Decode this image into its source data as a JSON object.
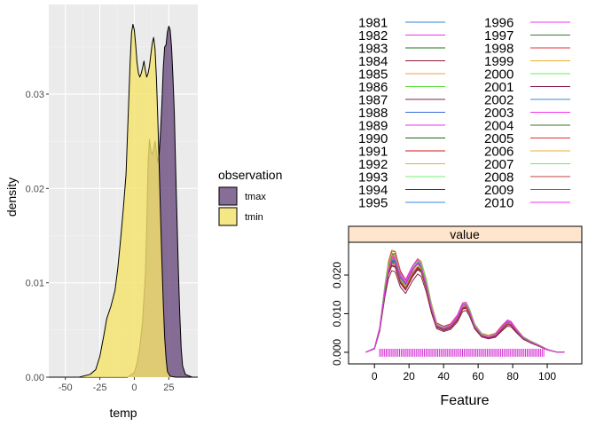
{
  "chart_data": [
    {
      "type": "area",
      "title": "",
      "xlabel": "temp",
      "ylabel": "density",
      "xlim": [
        -62,
        46
      ],
      "ylim": [
        0,
        0.0395
      ],
      "x_ticks": [
        -50,
        -25,
        0,
        25
      ],
      "x_tick_labels": [
        "-50",
        "-25",
        "0",
        "25"
      ],
      "y_ticks": [
        0.0,
        0.01,
        0.02,
        0.03
      ],
      "y_tick_labels": [
        "0.00",
        "0.01",
        "0.02",
        "0.03"
      ],
      "grid": true,
      "legend": {
        "title": "observation",
        "placement": "right"
      },
      "series": [
        {
          "name": "tmax",
          "fill": "#6a4c7e",
          "fill_opacity": 0.8,
          "points": [
            [
              -5,
              0
            ],
            [
              0,
              0.0005
            ],
            [
              2,
              0.0015
            ],
            [
              4,
              0.0032
            ],
            [
              6,
              0.006
            ],
            [
              8,
              0.0108
            ],
            [
              9,
              0.016
            ],
            [
              10,
              0.0228
            ],
            [
              11,
              0.0252
            ],
            [
              12,
              0.024
            ],
            [
              13,
              0.0236
            ],
            [
              14,
              0.0242
            ],
            [
              15,
              0.025
            ],
            [
              16,
              0.024
            ],
            [
              17,
              0.0228
            ],
            [
              18,
              0.0236
            ],
            [
              19,
              0.026
            ],
            [
              20,
              0.029
            ],
            [
              21,
              0.0328
            ],
            [
              22,
              0.035
            ],
            [
              23,
              0.0352
            ],
            [
              24,
              0.0366
            ],
            [
              25,
              0.0372
            ],
            [
              26,
              0.0368
            ],
            [
              27,
              0.035
            ],
            [
              28,
              0.0318
            ],
            [
              29,
              0.028
            ],
            [
              30,
              0.022
            ],
            [
              31,
              0.0165
            ],
            [
              32,
              0.011
            ],
            [
              33,
              0.0065
            ],
            [
              34,
              0.003
            ],
            [
              35,
              0.0012
            ],
            [
              37,
              0.0003
            ],
            [
              42,
              0
            ]
          ]
        },
        {
          "name": "tmin",
          "fill": "#f5e36a",
          "fill_opacity": 0.8,
          "points": [
            [
              -58,
              0
            ],
            [
              -40,
              0
            ],
            [
              -32,
              0.0003
            ],
            [
              -28,
              0.0008
            ],
            [
              -25,
              0.0022
            ],
            [
              -22,
              0.0045
            ],
            [
              -20,
              0.0062
            ],
            [
              -17,
              0.0075
            ],
            [
              -14,
              0.0092
            ],
            [
              -12,
              0.0115
            ],
            [
              -10,
              0.0145
            ],
            [
              -8,
              0.0178
            ],
            [
              -6,
              0.0215
            ],
            [
              -5,
              0.0255
            ],
            [
              -4,
              0.0295
            ],
            [
              -3,
              0.0335
            ],
            [
              -2,
              0.0365
            ],
            [
              -1,
              0.0374
            ],
            [
              0,
              0.0368
            ],
            [
              1,
              0.0352
            ],
            [
              2,
              0.0333
            ],
            [
              3,
              0.0322
            ],
            [
              4,
              0.0318
            ],
            [
              5,
              0.0322
            ],
            [
              6,
              0.0328
            ],
            [
              7,
              0.0335
            ],
            [
              8,
              0.0325
            ],
            [
              9,
              0.0318
            ],
            [
              10,
              0.0322
            ],
            [
              11,
              0.033
            ],
            [
              12,
              0.0342
            ],
            [
              13,
              0.0354
            ],
            [
              14,
              0.036
            ],
            [
              15,
              0.0348
            ],
            [
              16,
              0.0318
            ],
            [
              17,
              0.0275
            ],
            [
              18,
              0.0225
            ],
            [
              19,
              0.0172
            ],
            [
              20,
              0.0122
            ],
            [
              21,
              0.0078
            ],
            [
              22,
              0.0042
            ],
            [
              23,
              0.002
            ],
            [
              24,
              0.0006
            ],
            [
              26,
              0.0001
            ],
            [
              30,
              0
            ]
          ]
        }
      ]
    },
    {
      "type": "line",
      "title": "value",
      "xlabel": "Feature",
      "ylabel": "",
      "xlim": [
        -15,
        120
      ],
      "ylim": [
        -0.003,
        0.0285
      ],
      "x_ticks": [
        0,
        20,
        40,
        60,
        80,
        100
      ],
      "x_tick_labels": [
        "0",
        "20",
        "40",
        "60",
        "80",
        "100"
      ],
      "y_ticks": [
        0.0,
        0.01,
        0.02
      ],
      "y_tick_labels": [
        "0.000",
        "0.010",
        "0.020"
      ],
      "grid": false,
      "legend": {
        "placement": "top",
        "columns": 2
      },
      "base_density": [
        [
          -5,
          0
        ],
        [
          0,
          0.001
        ],
        [
          3,
          0.006
        ],
        [
          6,
          0.016
        ],
        [
          8,
          0.0215
        ],
        [
          10,
          0.0242
        ],
        [
          12,
          0.024
        ],
        [
          15,
          0.0195
        ],
        [
          18,
          0.0175
        ],
        [
          22,
          0.021
        ],
        [
          25,
          0.0228
        ],
        [
          27,
          0.022
        ],
        [
          30,
          0.0175
        ],
        [
          33,
          0.0115
        ],
        [
          36,
          0.007
        ],
        [
          40,
          0.0062
        ],
        [
          44,
          0.0068
        ],
        [
          48,
          0.009
        ],
        [
          51,
          0.012
        ],
        [
          53,
          0.0122
        ],
        [
          55,
          0.0105
        ],
        [
          58,
          0.0068
        ],
        [
          62,
          0.0045
        ],
        [
          66,
          0.004
        ],
        [
          70,
          0.0045
        ],
        [
          74,
          0.0065
        ],
        [
          77,
          0.0078
        ],
        [
          79,
          0.0075
        ],
        [
          82,
          0.0058
        ],
        [
          86,
          0.0038
        ],
        [
          90,
          0.0028
        ],
        [
          95,
          0.0018
        ],
        [
          100,
          0.0007
        ],
        [
          105,
          0.0001
        ],
        [
          110,
          0
        ]
      ],
      "rug_range": [
        3,
        98
      ],
      "rug_count": 100,
      "rug_color": "#d22ed2",
      "series": [
        {
          "name": "1981",
          "color": "#2f7fd2",
          "scale": 1.0
        },
        {
          "name": "1982",
          "color": "#f030f0",
          "scale": 1.03
        },
        {
          "name": "1983",
          "color": "#1e7a1e",
          "scale": 0.98
        },
        {
          "name": "1984",
          "color": "#8b1a3a",
          "scale": 1.05
        },
        {
          "name": "1985",
          "color": "#f0a040",
          "scale": 1.08
        },
        {
          "name": "1986",
          "color": "#60e040",
          "scale": 0.95
        },
        {
          "name": "1987",
          "color": "#8a2040",
          "scale": 0.88
        },
        {
          "name": "1988",
          "color": "#3a6ad8",
          "scale": 1.02
        },
        {
          "name": "1989",
          "color": "#f030f0",
          "scale": 0.97
        },
        {
          "name": "1990",
          "color": "#1e6a1e",
          "scale": 1.01
        },
        {
          "name": "1991",
          "color": "#d01818",
          "scale": 1.04
        },
        {
          "name": "1992",
          "color": "#e8b030",
          "scale": 0.99
        },
        {
          "name": "1993",
          "color": "#70f070",
          "scale": 1.06
        },
        {
          "name": "1994",
          "color": "#8a1818",
          "scale": 0.93
        },
        {
          "name": "1995",
          "color": "#3a8ae0",
          "scale": 1.0
        },
        {
          "name": "1996",
          "color": "#f030f0",
          "scale": 1.02
        },
        {
          "name": "1997",
          "color": "#3a7a2a",
          "scale": 0.96
        },
        {
          "name": "1998",
          "color": "#e03838",
          "scale": 1.07
        },
        {
          "name": "1999",
          "color": "#e8b030",
          "scale": 1.03
        },
        {
          "name": "2000",
          "color": "#60f060",
          "scale": 0.98
        },
        {
          "name": "2001",
          "color": "#8a1a4a",
          "scale": 0.94
        },
        {
          "name": "2002",
          "color": "#3a8ae0",
          "scale": 1.01
        },
        {
          "name": "2003",
          "color": "#f030f0",
          "scale": 1.05
        },
        {
          "name": "2004",
          "color": "#3a7a2a",
          "scale": 0.97
        },
        {
          "name": "2005",
          "color": "#e03030",
          "scale": 1.02
        },
        {
          "name": "2006",
          "color": "#e8b030",
          "scale": 0.99
        },
        {
          "name": "2007",
          "color": "#60f060",
          "scale": 1.04
        },
        {
          "name": "2008",
          "color": "#c04040",
          "scale": 0.96
        },
        {
          "name": "2009",
          "color": "#3a6ad8",
          "scale": 1.0
        },
        {
          "name": "2010",
          "color": "#f030f0",
          "scale": 1.01
        }
      ],
      "strip": {
        "label": "value",
        "fill": "#ffe5cc"
      }
    }
  ]
}
